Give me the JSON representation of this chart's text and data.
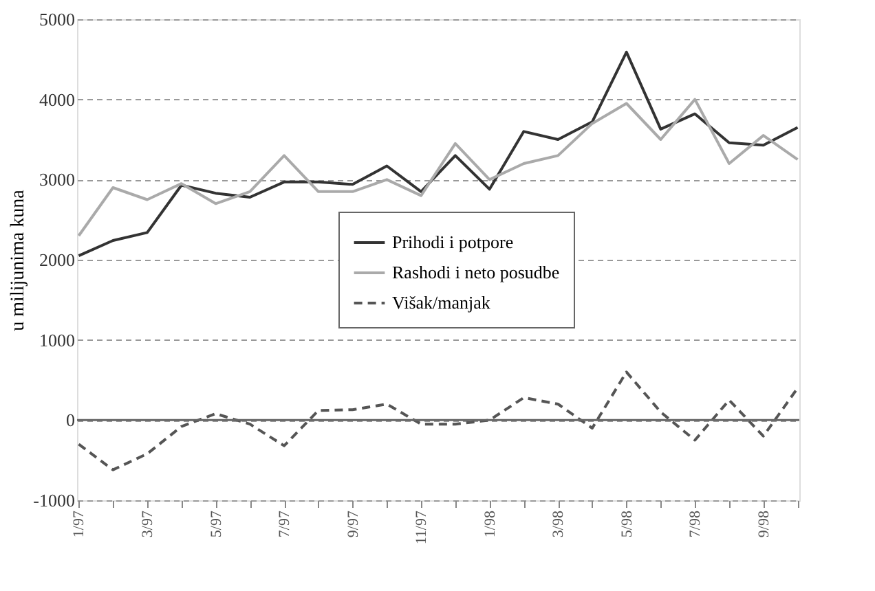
{
  "chart_data": {
    "type": "line",
    "ylabel": "u milijunima kuna",
    "categories": [
      "1/97",
      null,
      "3/97",
      null,
      "5/97",
      null,
      "7/97",
      null,
      "9/97",
      null,
      "11/97",
      null,
      "1/98",
      null,
      "3/98",
      null,
      "5/98",
      null,
      "7/98",
      null,
      "9/98",
      null
    ],
    "series": [
      {
        "name": "Prihodi i potpore",
        "color": "#333333",
        "line_style": "solid",
        "values": [
          2050,
          2240,
          2340,
          2930,
          2830,
          2780,
          2970,
          2970,
          2940,
          3170,
          2850,
          3300,
          2880,
          3600,
          3500,
          3720,
          4590,
          3630,
          3820,
          3460,
          3430,
          3650
        ]
      },
      {
        "name": "Rashodi i neto posudbe",
        "color": "#aaaaaa",
        "line_style": "solid",
        "values": [
          2300,
          2900,
          2750,
          2950,
          2700,
          2850,
          3300,
          2850,
          2850,
          3000,
          2800,
          3450,
          3000,
          3200,
          3300,
          3700,
          3950,
          3500,
          4000,
          3200,
          3550,
          3250
        ]
      },
      {
        "name": "Višak/manjak",
        "color": "#555555",
        "line_style": "dashed",
        "values": [
          -300,
          -620,
          -420,
          -80,
          80,
          -50,
          -320,
          120,
          130,
          200,
          -50,
          -50,
          0,
          280,
          200,
          -100,
          600,
          100,
          -250,
          250,
          -200,
          400
        ]
      }
    ],
    "ylim": [
      -1000,
      5000
    ],
    "yticks": [
      -1000,
      0,
      1000,
      2000,
      3000,
      4000,
      5000
    ],
    "grid": "y",
    "legend": "center",
    "marker": "none",
    "ref_lines": [
      {
        "axis": "y",
        "value": 0
      }
    ]
  }
}
